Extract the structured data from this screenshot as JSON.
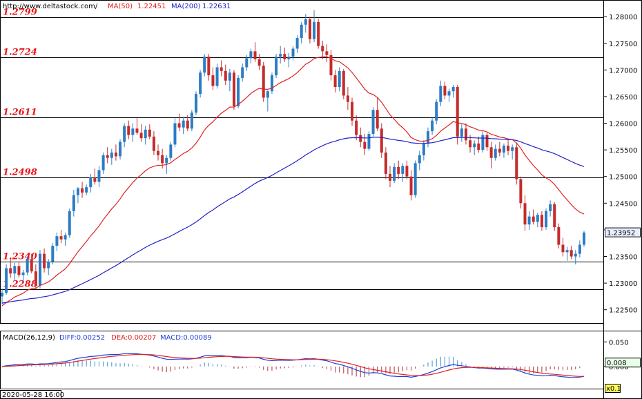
{
  "header": {
    "url": "http://www.deltastock.com/",
    "ma50_label": "MA(50)",
    "ma50_value": "1.22451",
    "ma200_label": "MA(200)",
    "ma200_value": "1.22631"
  },
  "macd_header": {
    "label": "MACD(26,12,9)",
    "diff": "DIFF:0.00252",
    "dea": "DEA:0.00207",
    "macd": "MACD:0.00089"
  },
  "bottom_timestamp": "2020-05-28 16:00",
  "multiplier_label": "x0.1",
  "colors": {
    "bull": "#2b7cc4",
    "bear": "#c42b2b",
    "ma50": "#e02020",
    "ma200": "#2020c8",
    "level_text": "#e8141b",
    "diff_line": "#1f3fd8",
    "dea_line": "#e02020",
    "hist_pos": "#3a8fd0",
    "hist_neg": "#b03030",
    "current_box": "#e8f0ff"
  },
  "chart_data": {
    "type": "candlestick",
    "instrument_price_axis": {
      "ylim": [
        1.2225,
        1.283
      ],
      "ticks": [
        "1.28000",
        "1.27500",
        "1.27000",
        "1.26500",
        "1.26000",
        "1.25500",
        "1.25000",
        "1.24500",
        "1.24000",
        "1.23500",
        "1.23000",
        "1.22500"
      ]
    },
    "levels": [
      "1.2799",
      "1.2724",
      "1.2611",
      "1.2498",
      "1.2340",
      "1.2288"
    ],
    "current_price": "1.23952",
    "macd_axis": {
      "ylim": [
        -0.045,
        0.07
      ],
      "ticks": [
        "0.050",
        "0.000"
      ],
      "current": "0.008"
    },
    "candles": [
      [
        1.2275,
        1.229,
        1.226,
        1.2282
      ],
      [
        1.2282,
        1.2335,
        1.2278,
        1.2328
      ],
      [
        1.2328,
        1.2345,
        1.231,
        1.2318
      ],
      [
        1.2318,
        1.2338,
        1.2305,
        1.2332
      ],
      [
        1.2332,
        1.234,
        1.231,
        1.2315
      ],
      [
        1.2315,
        1.2325,
        1.23,
        1.232
      ],
      [
        1.232,
        1.235,
        1.2315,
        1.2345
      ],
      [
        1.2345,
        1.2355,
        1.2318,
        1.2322
      ],
      [
        1.2322,
        1.2335,
        1.2288,
        1.2295
      ],
      [
        1.2295,
        1.2362,
        1.229,
        1.2355
      ],
      [
        1.2355,
        1.2365,
        1.232,
        1.2328
      ],
      [
        1.2328,
        1.2345,
        1.2315,
        1.234
      ],
      [
        1.234,
        1.2375,
        1.2335,
        1.237
      ],
      [
        1.237,
        1.2395,
        1.236,
        1.2388
      ],
      [
        1.2388,
        1.24,
        1.2375,
        1.2382
      ],
      [
        1.2382,
        1.2395,
        1.237,
        1.239
      ],
      [
        1.239,
        1.244,
        1.2385,
        1.2435
      ],
      [
        1.2435,
        1.2475,
        1.2425,
        1.2465
      ],
      [
        1.2465,
        1.248,
        1.245,
        1.2478
      ],
      [
        1.2478,
        1.249,
        1.246,
        1.247
      ],
      [
        1.247,
        1.2485,
        1.2465,
        1.248
      ],
      [
        1.248,
        1.2505,
        1.247,
        1.2498
      ],
      [
        1.2498,
        1.2515,
        1.2485,
        1.249
      ],
      [
        1.249,
        1.252,
        1.248,
        1.2512
      ],
      [
        1.2512,
        1.2545,
        1.2505,
        1.254
      ],
      [
        1.254,
        1.2555,
        1.2525,
        1.2535
      ],
      [
        1.2535,
        1.2552,
        1.2522,
        1.2545
      ],
      [
        1.2545,
        1.256,
        1.253,
        1.2538
      ],
      [
        1.2538,
        1.257,
        1.2532,
        1.2565
      ],
      [
        1.2565,
        1.26,
        1.2555,
        1.2595
      ],
      [
        1.2595,
        1.2605,
        1.257,
        1.2578
      ],
      [
        1.2578,
        1.26,
        1.2565,
        1.259
      ],
      [
        1.259,
        1.261,
        1.2578,
        1.2582
      ],
      [
        1.2582,
        1.2598,
        1.2565,
        1.2572
      ],
      [
        1.2572,
        1.2595,
        1.256,
        1.2588
      ],
      [
        1.2588,
        1.2598,
        1.257,
        1.2575
      ],
      [
        1.2575,
        1.2585,
        1.254,
        1.2548
      ],
      [
        1.2548,
        1.256,
        1.253,
        1.254
      ],
      [
        1.254,
        1.2552,
        1.2515,
        1.2525
      ],
      [
        1.2525,
        1.254,
        1.2505,
        1.2535
      ],
      [
        1.2535,
        1.2565,
        1.253,
        1.256
      ],
      [
        1.256,
        1.261,
        1.2555,
        1.26
      ],
      [
        1.26,
        1.2618,
        1.2585,
        1.2592
      ],
      [
        1.2592,
        1.2612,
        1.258,
        1.2605
      ],
      [
        1.2605,
        1.2615,
        1.2585,
        1.259
      ],
      [
        1.259,
        1.2625,
        1.2585,
        1.262
      ],
      [
        1.262,
        1.266,
        1.2615,
        1.2655
      ],
      [
        1.2655,
        1.27,
        1.2648,
        1.2695
      ],
      [
        1.2695,
        1.273,
        1.2688,
        1.2725
      ],
      [
        1.2725,
        1.273,
        1.268,
        1.269
      ],
      [
        1.269,
        1.2705,
        1.2662,
        1.267
      ],
      [
        1.267,
        1.2712,
        1.2665,
        1.2705
      ],
      [
        1.2705,
        1.2718,
        1.2688,
        1.2698
      ],
      [
        1.2698,
        1.271,
        1.2672,
        1.268
      ],
      [
        1.268,
        1.2702,
        1.266,
        1.2695
      ],
      [
        1.2695,
        1.27,
        1.2625,
        1.2632
      ],
      [
        1.2632,
        1.269,
        1.2628,
        1.2685
      ],
      [
        1.2685,
        1.2712,
        1.2678,
        1.2705
      ],
      [
        1.2705,
        1.2728,
        1.2698,
        1.2722
      ],
      [
        1.2722,
        1.274,
        1.2712,
        1.2735
      ],
      [
        1.2735,
        1.2752,
        1.2715,
        1.272
      ],
      [
        1.272,
        1.273,
        1.27,
        1.2708
      ],
      [
        1.2708,
        1.2715,
        1.264,
        1.2648
      ],
      [
        1.2648,
        1.2662,
        1.2622,
        1.266
      ],
      [
        1.266,
        1.2695,
        1.2655,
        1.269
      ],
      [
        1.269,
        1.273,
        1.2685,
        1.2725
      ],
      [
        1.2725,
        1.2745,
        1.2712,
        1.273
      ],
      [
        1.273,
        1.2742,
        1.2715,
        1.272
      ],
      [
        1.272,
        1.2732,
        1.2705,
        1.2725
      ],
      [
        1.2725,
        1.2745,
        1.2718,
        1.274
      ],
      [
        1.274,
        1.2765,
        1.2732,
        1.276
      ],
      [
        1.276,
        1.279,
        1.275,
        1.2785
      ],
      [
        1.2785,
        1.2805,
        1.277,
        1.2795
      ],
      [
        1.2795,
        1.28,
        1.275,
        1.2758
      ],
      [
        1.2758,
        1.2812,
        1.2752,
        1.279
      ],
      [
        1.279,
        1.2796,
        1.274,
        1.2745
      ],
      [
        1.2745,
        1.2755,
        1.272,
        1.2735
      ],
      [
        1.2735,
        1.2748,
        1.2715,
        1.2728
      ],
      [
        1.2728,
        1.2738,
        1.268,
        1.269
      ],
      [
        1.269,
        1.27,
        1.2658,
        1.2668
      ],
      [
        1.2668,
        1.2705,
        1.266,
        1.2698
      ],
      [
        1.2698,
        1.2702,
        1.2645,
        1.2652
      ],
      [
        1.2652,
        1.2668,
        1.2625,
        1.264
      ],
      [
        1.264,
        1.2648,
        1.2595,
        1.2605
      ],
      [
        1.2605,
        1.2615,
        1.2568,
        1.2578
      ],
      [
        1.2578,
        1.2592,
        1.2555,
        1.2565
      ],
      [
        1.2565,
        1.258,
        1.254,
        1.2552
      ],
      [
        1.2552,
        1.2585,
        1.2548,
        1.258
      ],
      [
        1.258,
        1.263,
        1.2575,
        1.2625
      ],
      [
        1.2625,
        1.2648,
        1.2585,
        1.259
      ],
      [
        1.259,
        1.26,
        1.2535,
        1.2545
      ],
      [
        1.2545,
        1.2555,
        1.2495,
        1.2505
      ],
      [
        1.2505,
        1.252,
        1.248,
        1.2492
      ],
      [
        1.2492,
        1.2525,
        1.2488,
        1.2518
      ],
      [
        1.2518,
        1.253,
        1.2495,
        1.2505
      ],
      [
        1.2505,
        1.2525,
        1.249,
        1.252
      ],
      [
        1.252,
        1.253,
        1.2495,
        1.25
      ],
      [
        1.25,
        1.2512,
        1.2455,
        1.2465
      ],
      [
        1.2465,
        1.253,
        1.246,
        1.2525
      ],
      [
        1.2525,
        1.2548,
        1.2512,
        1.254
      ],
      [
        1.254,
        1.2568,
        1.253,
        1.2562
      ],
      [
        1.2562,
        1.2592,
        1.2555,
        1.2585
      ],
      [
        1.2585,
        1.261,
        1.2578,
        1.2605
      ],
      [
        1.2605,
        1.2645,
        1.2598,
        1.264
      ],
      [
        1.264,
        1.268,
        1.2632,
        1.267
      ],
      [
        1.267,
        1.2678,
        1.2645,
        1.2652
      ],
      [
        1.2652,
        1.2665,
        1.264,
        1.266
      ],
      [
        1.266,
        1.2672,
        1.2648,
        1.2668
      ],
      [
        1.2668,
        1.2672,
        1.256,
        1.2575
      ],
      [
        1.2575,
        1.2598,
        1.2565,
        1.259
      ],
      [
        1.259,
        1.26,
        1.256,
        1.2568
      ],
      [
        1.2568,
        1.2578,
        1.2545,
        1.2555
      ],
      [
        1.2555,
        1.2568,
        1.254,
        1.2562
      ],
      [
        1.2562,
        1.2575,
        1.2545,
        1.255
      ],
      [
        1.255,
        1.2585,
        1.2545,
        1.2578
      ],
      [
        1.2578,
        1.2582,
        1.2548,
        1.2555
      ],
      [
        1.2555,
        1.2565,
        1.2515,
        1.2535
      ],
      [
        1.2535,
        1.256,
        1.253,
        1.2552
      ],
      [
        1.2552,
        1.2565,
        1.2538,
        1.2545
      ],
      [
        1.2545,
        1.2562,
        1.2535,
        1.2558
      ],
      [
        1.2558,
        1.257,
        1.254,
        1.2548
      ],
      [
        1.2548,
        1.256,
        1.2532,
        1.2555
      ],
      [
        1.2555,
        1.2562,
        1.2485,
        1.2495
      ],
      [
        1.2495,
        1.25,
        1.244,
        1.245
      ],
      [
        1.245,
        1.2465,
        1.2398,
        1.241
      ],
      [
        1.241,
        1.2435,
        1.24,
        1.2425
      ],
      [
        1.2425,
        1.2438,
        1.241,
        1.2415
      ],
      [
        1.2415,
        1.2432,
        1.2405,
        1.2428
      ],
      [
        1.2428,
        1.2435,
        1.2398,
        1.2405
      ],
      [
        1.2405,
        1.244,
        1.24,
        1.2435
      ],
      [
        1.2435,
        1.2455,
        1.2425,
        1.2448
      ],
      [
        1.2448,
        1.2452,
        1.2398,
        1.2405
      ],
      [
        1.2405,
        1.2412,
        1.2365,
        1.2372
      ],
      [
        1.2372,
        1.2385,
        1.235,
        1.2358
      ],
      [
        1.2358,
        1.2368,
        1.2342,
        1.2362
      ],
      [
        1.2362,
        1.237,
        1.2345,
        1.235
      ],
      [
        1.235,
        1.2362,
        1.2335,
        1.2355
      ],
      [
        1.2355,
        1.238,
        1.2348,
        1.2372
      ],
      [
        1.2372,
        1.2398,
        1.2368,
        1.2395
      ]
    ]
  }
}
